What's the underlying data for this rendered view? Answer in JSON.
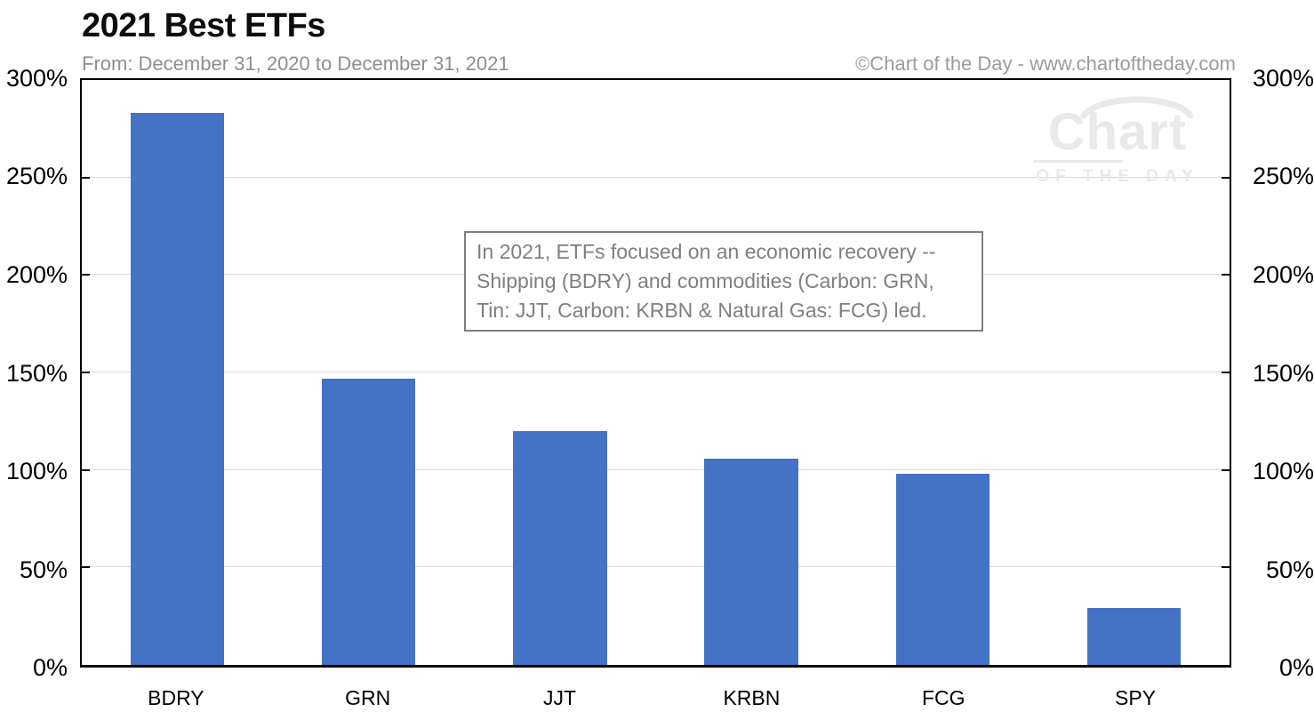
{
  "chart_data": {
    "type": "bar",
    "title": "2021 Best ETFs",
    "subtitle": "From: December 31, 2020 to December 31, 2021",
    "source": "©Chart of the Day - www.chartoftheday.com",
    "categories": [
      "BDRY",
      "GRN",
      "JJT",
      "KRBN",
      "FCG",
      "SPY"
    ],
    "values": [
      283,
      147,
      120,
      106,
      98,
      29
    ],
    "xlabel": "",
    "ylabel": "",
    "ylim": [
      0,
      300
    ],
    "ytick_step": 50,
    "ytick_suffix": "%",
    "y_axis_sides": "both",
    "grid": true,
    "legend": false,
    "annotation": {
      "lines": [
        "In 2021, ETFs focused on an economic recovery --",
        "Shipping (BDRY) and commodities (Carbon: GRN,",
        "Tin: JJT, Carbon: KRBN & Natural Gas: FCG) led."
      ]
    }
  },
  "watermark": {
    "line1": "Chart",
    "line2": "OF THE DAY"
  },
  "colors": {
    "bar": "#4472C4",
    "grid": "#d9d9d9",
    "axis": "#000000",
    "muted_text": "#8e8e8e",
    "annotation_gray": "#7f7f7f",
    "watermark_gray": "#e9e9e9"
  }
}
